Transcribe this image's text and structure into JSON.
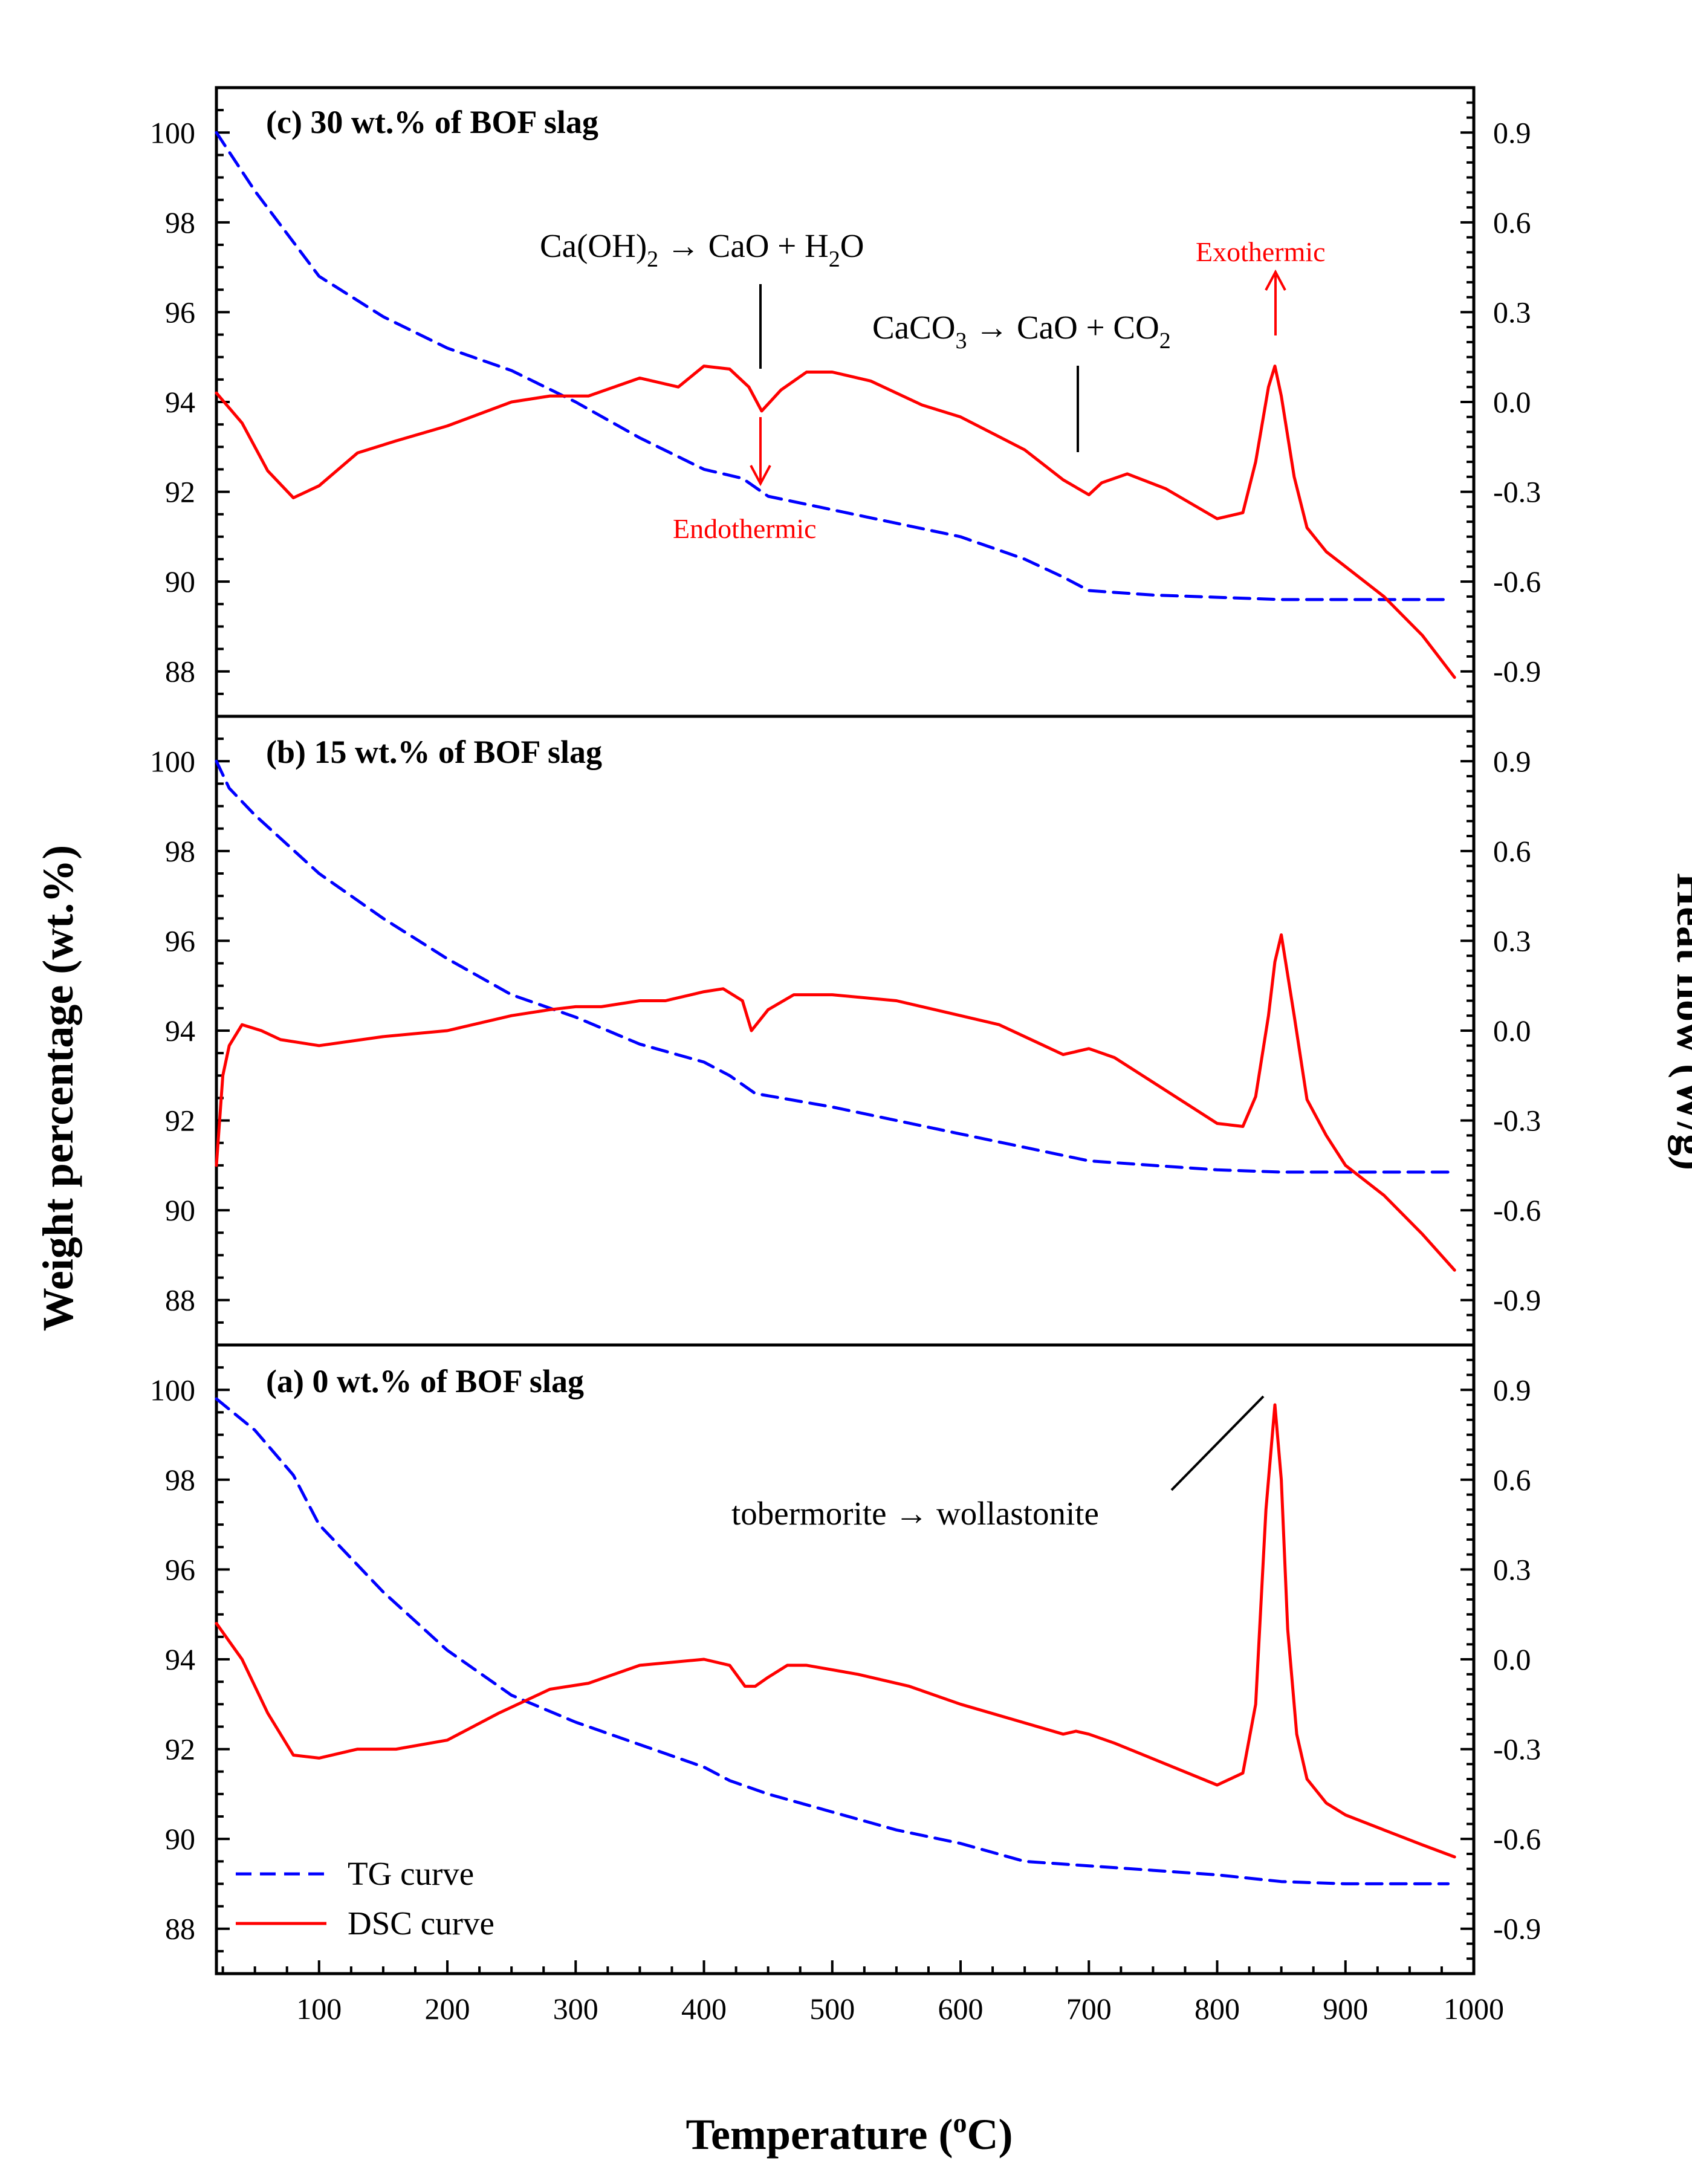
{
  "chart_data": {
    "type": "line",
    "xlabel": "Temperature (",
    "xlabel_sup": "o",
    "xlabel_end": "C)",
    "ylabel_left": "Weight percentage (wt.%)",
    "ylabel_right": "Heat flow (W/g)",
    "xlim": [
      20,
      1000
    ],
    "x_ticks": [
      100,
      200,
      300,
      400,
      500,
      600,
      700,
      800,
      900,
      1000
    ],
    "x_tick_labels": [
      "100",
      "200",
      "300",
      "400",
      "500",
      "600",
      "700",
      "800",
      "900",
      "1000"
    ],
    "y_left_lim": [
      87,
      101
    ],
    "y_left_ticks": [
      88,
      90,
      92,
      94,
      96,
      98,
      100
    ],
    "y_left_tick_labels": [
      "88",
      "90",
      "92",
      "94",
      "96",
      "98",
      "100"
    ],
    "y_right_lim": [
      -1.05,
      1.05
    ],
    "y_right_ticks": [
      -0.9,
      -0.6,
      -0.3,
      0.0,
      0.3,
      0.6,
      0.9
    ],
    "y_right_tick_labels": [
      "-0.9",
      "-0.6",
      "-0.3",
      "0.0",
      "0.3",
      "0.6",
      "0.9"
    ],
    "legend": {
      "placement": "bottom-left",
      "entries": [
        {
          "name": "TG curve",
          "color": "#0000ff",
          "dash": "dashed"
        },
        {
          "name": "DSC curve",
          "color": "#ff0000",
          "dash": "solid"
        }
      ]
    },
    "panels": [
      {
        "id": "c",
        "title": "(c) 30 wt.% of BOF slag",
        "series": [
          {
            "name": "TG curve",
            "axis": "left",
            "x": [
              20,
              50,
              100,
              150,
              200,
              250,
              300,
              350,
              400,
              430,
              450,
              500,
              550,
              600,
              650,
              680,
              700,
              750,
              800,
              850,
              900,
              950,
              980
            ],
            "y": [
              100.0,
              98.7,
              96.8,
              95.9,
              95.2,
              94.7,
              94.0,
              93.2,
              92.5,
              92.3,
              91.9,
              91.6,
              91.3,
              91.0,
              90.5,
              90.1,
              89.8,
              89.7,
              89.65,
              89.6,
              89.6,
              89.6,
              89.6
            ]
          },
          {
            "name": "DSC curve",
            "axis": "right",
            "x": [
              20,
              40,
              60,
              80,
              100,
              130,
              160,
              200,
              250,
              280,
              310,
              350,
              380,
              400,
              420,
              435,
              445,
              460,
              480,
              500,
              530,
              570,
              600,
              650,
              680,
              700,
              710,
              730,
              760,
              800,
              820,
              830,
              840,
              845,
              850,
              860,
              870,
              885,
              900,
              930,
              960,
              985
            ],
            "y": [
              0.03,
              -0.07,
              -0.23,
              -0.32,
              -0.28,
              -0.17,
              -0.13,
              -0.08,
              0.0,
              0.02,
              0.02,
              0.08,
              0.05,
              0.12,
              0.11,
              0.05,
              -0.03,
              0.04,
              0.1,
              0.1,
              0.07,
              -0.01,
              -0.05,
              -0.16,
              -0.26,
              -0.31,
              -0.27,
              -0.24,
              -0.29,
              -0.39,
              -0.37,
              -0.2,
              0.05,
              0.12,
              0.02,
              -0.25,
              -0.42,
              -0.5,
              -0.55,
              -0.65,
              -0.78,
              -0.92
            ]
          }
        ],
        "annotations": [
          {
            "text_main": "Ca(OH)",
            "text_sub": "2",
            "text_rest": " → CaO + H",
            "text_sub2": "2",
            "text_end": "O"
          },
          {
            "text_main": "CaCO",
            "text_sub": "3",
            "text_rest": " → CaO + CO",
            "text_sub2": "2"
          },
          {
            "text": "Endothermic",
            "color": "#ff0000"
          },
          {
            "text": "Exothermic",
            "color": "#ff0000"
          }
        ]
      },
      {
        "id": "b",
        "title": "(b) 15 wt.% of BOF slag",
        "series": [
          {
            "name": "TG curve",
            "axis": "left",
            "x": [
              20,
              30,
              50,
              100,
              150,
              200,
              250,
              300,
              350,
              400,
              420,
              440,
              500,
              550,
              600,
              650,
              700,
              750,
              800,
              850,
              900,
              950,
              980
            ],
            "y": [
              100.0,
              99.4,
              98.8,
              97.5,
              96.5,
              95.6,
              94.8,
              94.3,
              93.7,
              93.3,
              93.0,
              92.6,
              92.3,
              92.0,
              91.7,
              91.4,
              91.1,
              91.0,
              90.9,
              90.85,
              90.85,
              90.85,
              90.85
            ]
          },
          {
            "name": "DSC curve",
            "axis": "right",
            "x": [
              20,
              25,
              30,
              40,
              55,
              70,
              100,
              150,
              200,
              250,
              280,
              300,
              320,
              350,
              370,
              400,
              415,
              430,
              437,
              450,
              470,
              500,
              550,
              600,
              630,
              660,
              680,
              700,
              720,
              760,
              800,
              820,
              830,
              840,
              845,
              850,
              860,
              870,
              885,
              900,
              930,
              960,
              985
            ],
            "y": [
              -0.45,
              -0.15,
              -0.05,
              0.02,
              0.0,
              -0.03,
              -0.05,
              -0.02,
              0.0,
              0.05,
              0.07,
              0.08,
              0.08,
              0.1,
              0.1,
              0.13,
              0.14,
              0.1,
              0.0,
              0.07,
              0.12,
              0.12,
              0.1,
              0.05,
              0.02,
              -0.04,
              -0.08,
              -0.06,
              -0.09,
              -0.2,
              -0.31,
              -0.32,
              -0.22,
              0.05,
              0.23,
              0.32,
              0.05,
              -0.23,
              -0.35,
              -0.45,
              -0.55,
              -0.68,
              -0.8
            ]
          }
        ]
      },
      {
        "id": "a",
        "title": "(a) 0 wt.% of BOF slag",
        "series": [
          {
            "name": "TG curve",
            "axis": "left",
            "x": [
              20,
              50,
              80,
              100,
              150,
              200,
              250,
              300,
              350,
              400,
              420,
              450,
              500,
              550,
              600,
              650,
              700,
              750,
              800,
              850,
              900,
              950,
              980
            ],
            "y": [
              99.8,
              99.1,
              98.1,
              97.0,
              95.5,
              94.2,
              93.2,
              92.6,
              92.1,
              91.6,
              91.3,
              91.0,
              90.6,
              90.2,
              89.9,
              89.5,
              89.4,
              89.3,
              89.2,
              89.05,
              89.0,
              89.0,
              89.0
            ]
          },
          {
            "name": "DSC curve",
            "axis": "right",
            "x": [
              20,
              40,
              60,
              80,
              100,
              130,
              160,
              200,
              240,
              280,
              310,
              350,
              400,
              420,
              432,
              440,
              450,
              465,
              480,
              520,
              560,
              600,
              640,
              680,
              690,
              700,
              720,
              760,
              800,
              820,
              830,
              838,
              845,
              850,
              855,
              862,
              870,
              885,
              900,
              930,
              960,
              985
            ],
            "y": [
              0.12,
              0.0,
              -0.18,
              -0.32,
              -0.33,
              -0.3,
              -0.3,
              -0.27,
              -0.18,
              -0.1,
              -0.08,
              -0.02,
              0.0,
              -0.02,
              -0.09,
              -0.09,
              -0.06,
              -0.02,
              -0.02,
              -0.05,
              -0.09,
              -0.15,
              -0.2,
              -0.25,
              -0.24,
              -0.25,
              -0.28,
              -0.35,
              -0.42,
              -0.38,
              -0.15,
              0.5,
              0.85,
              0.6,
              0.1,
              -0.25,
              -0.4,
              -0.48,
              -0.52,
              -0.57,
              -0.62,
              -0.66
            ]
          }
        ],
        "annotations": [
          {
            "text": "tobermorite → wollastonite"
          }
        ]
      }
    ]
  },
  "colors": {
    "tg": "#0000ff",
    "dsc": "#ff0000",
    "frame": "#000000"
  }
}
